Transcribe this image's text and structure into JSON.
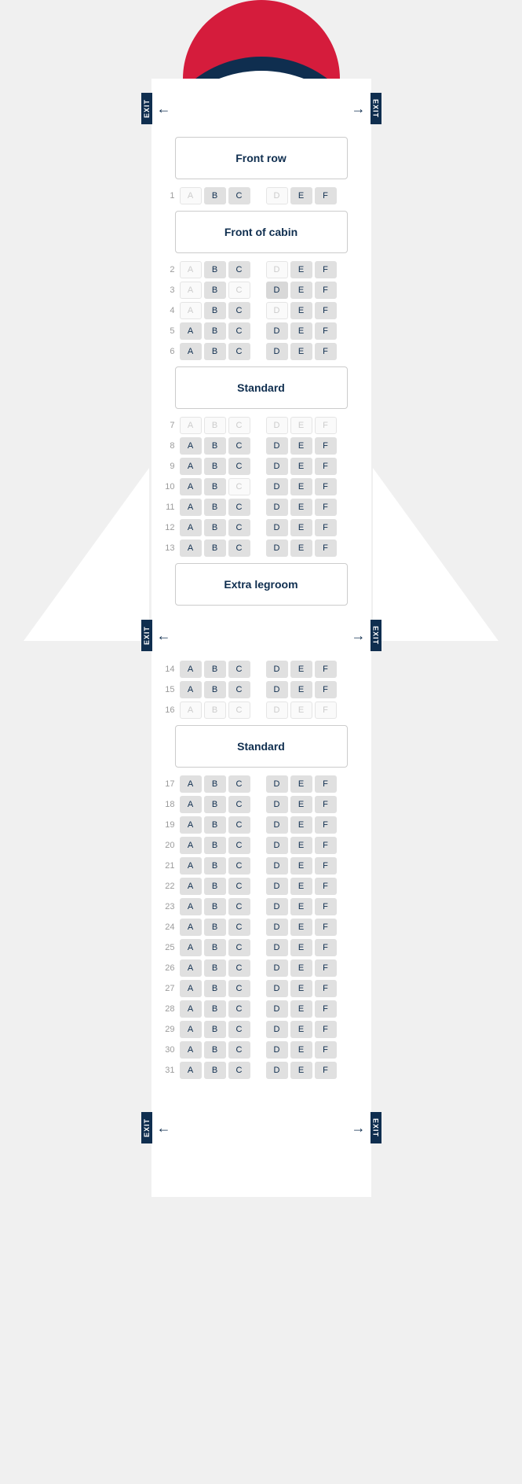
{
  "exit_label": "EXIT",
  "sections": {
    "front_row": "Front row",
    "front_cabin": "Front of cabin",
    "standard1": "Standard",
    "extra_legroom": "Extra legroom",
    "standard2": "Standard"
  },
  "columns_left": [
    "A",
    "B",
    "C"
  ],
  "columns_right": [
    "D",
    "E",
    "F"
  ],
  "colors": {
    "red": "#d51c3c",
    "navy": "#0f2e4f",
    "bg": "#f0f0f0",
    "seat_avail": "#e0e0e0",
    "seat_premium": "#d8d8d8",
    "seat_occ_bg": "#fafafa",
    "seat_occ_text": "#cccccc",
    "seat_text": "#0f2e4f",
    "rownum": "#9b9b9b"
  },
  "layout": [
    {
      "type": "exit"
    },
    {
      "type": "section",
      "key": "front_row"
    },
    {
      "type": "row",
      "n": 1,
      "seats": [
        "o",
        "a",
        "a",
        "o",
        "a",
        "a"
      ]
    },
    {
      "type": "section",
      "key": "front_cabin"
    },
    {
      "type": "row",
      "n": 2,
      "seats": [
        "o",
        "a",
        "a",
        "o",
        "a",
        "a"
      ]
    },
    {
      "type": "row",
      "n": 3,
      "seats": [
        "o",
        "a",
        "o",
        "p",
        "a",
        "a"
      ]
    },
    {
      "type": "row",
      "n": 4,
      "seats": [
        "o",
        "a",
        "a",
        "o",
        "a",
        "a"
      ]
    },
    {
      "type": "row",
      "n": 5,
      "seats": [
        "a",
        "a",
        "a",
        "a",
        "a",
        "a"
      ]
    },
    {
      "type": "row",
      "n": 6,
      "seats": [
        "a",
        "a",
        "a",
        "a",
        "a",
        "a"
      ]
    },
    {
      "type": "section",
      "key": "standard1"
    },
    {
      "type": "row",
      "n": 7,
      "seats": [
        "o",
        "o",
        "o",
        "o",
        "o",
        "o"
      ]
    },
    {
      "type": "row",
      "n": 8,
      "seats": [
        "a",
        "a",
        "a",
        "a",
        "a",
        "a"
      ]
    },
    {
      "type": "row",
      "n": 9,
      "seats": [
        "a",
        "a",
        "a",
        "a",
        "a",
        "a"
      ]
    },
    {
      "type": "row",
      "n": 10,
      "seats": [
        "a",
        "a",
        "o",
        "a",
        "a",
        "a"
      ]
    },
    {
      "type": "row",
      "n": 11,
      "seats": [
        "a",
        "a",
        "a",
        "a",
        "a",
        "a"
      ]
    },
    {
      "type": "row",
      "n": 12,
      "seats": [
        "a",
        "a",
        "a",
        "a",
        "a",
        "a"
      ]
    },
    {
      "type": "row",
      "n": 13,
      "seats": [
        "a",
        "a",
        "a",
        "a",
        "a",
        "a"
      ]
    },
    {
      "type": "section",
      "key": "extra_legroom"
    },
    {
      "type": "exit"
    },
    {
      "type": "row",
      "n": 14,
      "seats": [
        "a",
        "a",
        "a",
        "a",
        "a",
        "a"
      ]
    },
    {
      "type": "row",
      "n": 15,
      "seats": [
        "a",
        "a",
        "a",
        "a",
        "a",
        "a"
      ]
    },
    {
      "type": "row",
      "n": 16,
      "seats": [
        "o",
        "o",
        "o",
        "o",
        "o",
        "o"
      ]
    },
    {
      "type": "section",
      "key": "standard2"
    },
    {
      "type": "row",
      "n": 17,
      "seats": [
        "a",
        "a",
        "a",
        "a",
        "a",
        "a"
      ]
    },
    {
      "type": "row",
      "n": 18,
      "seats": [
        "a",
        "a",
        "a",
        "a",
        "a",
        "a"
      ]
    },
    {
      "type": "row",
      "n": 19,
      "seats": [
        "a",
        "a",
        "a",
        "a",
        "a",
        "a"
      ]
    },
    {
      "type": "row",
      "n": 20,
      "seats": [
        "a",
        "a",
        "a",
        "a",
        "a",
        "a"
      ]
    },
    {
      "type": "row",
      "n": 21,
      "seats": [
        "a",
        "a",
        "a",
        "a",
        "a",
        "a"
      ]
    },
    {
      "type": "row",
      "n": 22,
      "seats": [
        "a",
        "a",
        "a",
        "a",
        "a",
        "a"
      ]
    },
    {
      "type": "row",
      "n": 23,
      "seats": [
        "a",
        "a",
        "a",
        "a",
        "a",
        "a"
      ]
    },
    {
      "type": "row",
      "n": 24,
      "seats": [
        "a",
        "a",
        "a",
        "a",
        "a",
        "a"
      ]
    },
    {
      "type": "row",
      "n": 25,
      "seats": [
        "a",
        "a",
        "a",
        "a",
        "a",
        "a"
      ]
    },
    {
      "type": "row",
      "n": 26,
      "seats": [
        "a",
        "a",
        "a",
        "a",
        "a",
        "a"
      ]
    },
    {
      "type": "row",
      "n": 27,
      "seats": [
        "a",
        "a",
        "a",
        "a",
        "a",
        "a"
      ]
    },
    {
      "type": "row",
      "n": 28,
      "seats": [
        "a",
        "a",
        "a",
        "a",
        "a",
        "a"
      ]
    },
    {
      "type": "row",
      "n": 29,
      "seats": [
        "a",
        "a",
        "a",
        "a",
        "a",
        "a"
      ]
    },
    {
      "type": "row",
      "n": 30,
      "seats": [
        "a",
        "a",
        "a",
        "a",
        "a",
        "a"
      ]
    },
    {
      "type": "row",
      "n": 31,
      "seats": [
        "a",
        "a",
        "a",
        "a",
        "a",
        "a"
      ]
    },
    {
      "type": "spacer"
    },
    {
      "type": "exit"
    }
  ]
}
